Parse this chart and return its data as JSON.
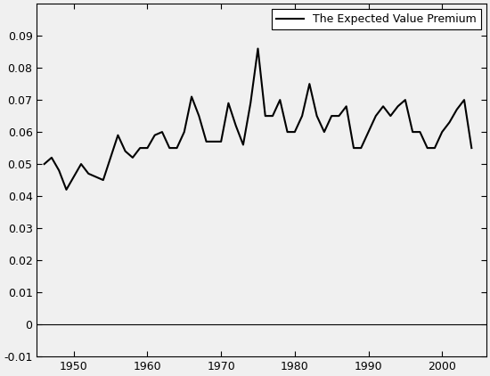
{
  "years": [
    1946,
    1947,
    1948,
    1949,
    1950,
    1951,
    1952,
    1953,
    1954,
    1955,
    1956,
    1957,
    1958,
    1959,
    1960,
    1961,
    1962,
    1963,
    1964,
    1965,
    1966,
    1967,
    1968,
    1969,
    1970,
    1971,
    1972,
    1973,
    1974,
    1975,
    1976,
    1977,
    1978,
    1979,
    1980,
    1981,
    1982,
    1983,
    1984,
    1985,
    1986,
    1987,
    1988,
    1989,
    1990,
    1991,
    1992,
    1993,
    1994,
    1995,
    1996,
    1997,
    1998,
    1999,
    2000,
    2001,
    2002,
    2003,
    2004
  ],
  "values": [
    0.05,
    0.052,
    0.048,
    0.042,
    0.046,
    0.05,
    0.047,
    0.046,
    0.045,
    0.052,
    0.059,
    0.054,
    0.052,
    0.055,
    0.055,
    0.059,
    0.06,
    0.055,
    0.055,
    0.06,
    0.071,
    0.065,
    0.057,
    0.057,
    0.057,
    0.069,
    0.062,
    0.056,
    0.069,
    0.086,
    0.065,
    0.065,
    0.07,
    0.06,
    0.06,
    0.065,
    0.075,
    0.065,
    0.06,
    0.065,
    0.065,
    0.068,
    0.055,
    0.055,
    0.06,
    0.065,
    0.068,
    0.065,
    0.068,
    0.07,
    0.06,
    0.06,
    0.055,
    0.055,
    0.06,
    0.063,
    0.067,
    0.07,
    0.055
  ],
  "line_color": "#000000",
  "line_width": 1.5,
  "legend_label": "The Expected Value Premium",
  "xlim": [
    1945,
    2006
  ],
  "ylim": [
    -0.01,
    0.1
  ],
  "ytick_values": [
    -0.01,
    0,
    0.01,
    0.02,
    0.03,
    0.04,
    0.05,
    0.06,
    0.07,
    0.08,
    0.09
  ],
  "ytick_labels": [
    "-0.01",
    "0",
    "0.01",
    "0.02",
    "0.03",
    "0.04",
    "0.05",
    "0.06",
    "0.07",
    "0.08",
    "0.09"
  ],
  "xticks": [
    1950,
    1960,
    1970,
    1980,
    1990,
    2000
  ],
  "plot_bg_color": "#f0f0f0",
  "outer_bg_color": "#f0f0f0",
  "hline_y": 0,
  "hline_color": "#000000",
  "legend_fontsize": 9,
  "tick_labelsize": 9
}
